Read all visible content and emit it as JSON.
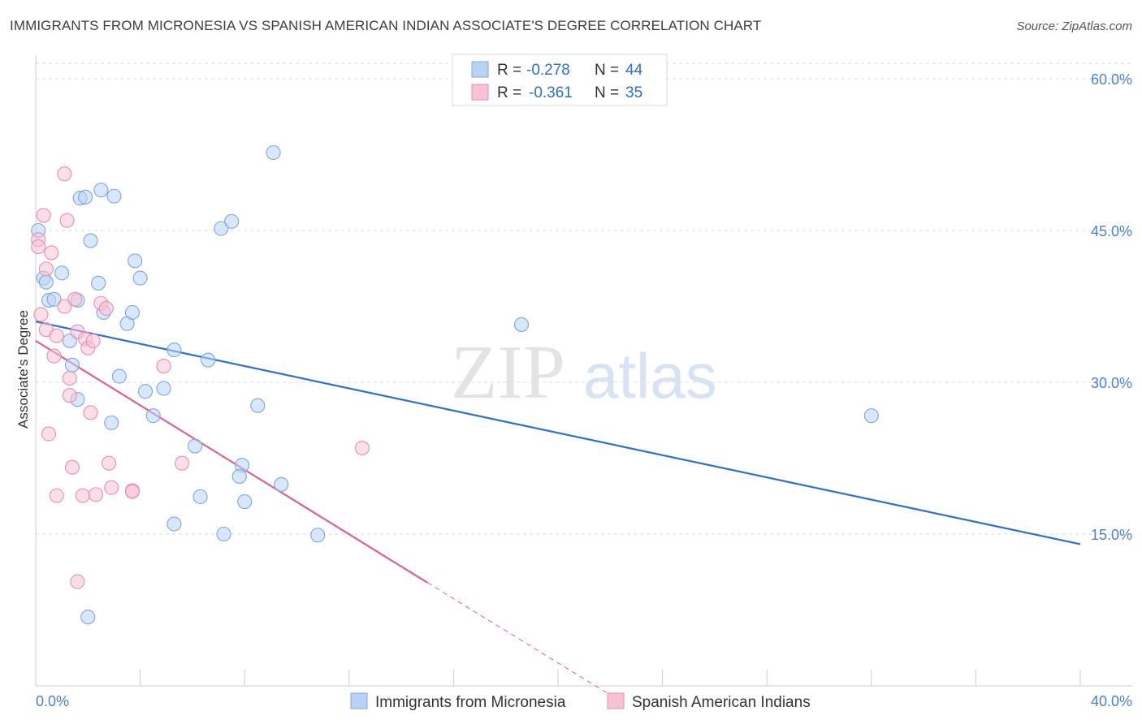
{
  "title": "IMMIGRANTS FROM MICRONESIA VS SPANISH AMERICAN INDIAN ASSOCIATE'S DEGREE CORRELATION CHART",
  "source": "Source: ZipAtlas.com",
  "watermark": {
    "zip": "ZIP",
    "atlas": "atlas"
  },
  "colors": {
    "blue_fill": "#b9d3f5",
    "blue_stroke": "#7ba7e0",
    "blue_line": "#2d6fd1",
    "pink_fill": "#f7c3d3",
    "pink_stroke": "#e88fac",
    "pink_line": "#e06090",
    "tick_text": "#4a7fd0",
    "grid": "#dcdcdc"
  },
  "legend": {
    "rows": [
      {
        "r_label": "R = ",
        "r_value": "-0.278",
        "n_label": "N = ",
        "n_value": "44",
        "series": "blue"
      },
      {
        "r_label": "R = ",
        "r_value": "-0.361",
        "n_label": "N = ",
        "n_value": "35",
        "series": "pink"
      }
    ]
  },
  "chart_data": {
    "type": "scatter",
    "title": "IMMIGRANTS FROM MICRONESIA VS SPANISH AMERICAN INDIAN ASSOCIATE'S DEGREE CORRELATION CHART",
    "xlabel": "",
    "ylabel": "Associate's Degree",
    "xlim": [
      0,
      40
    ],
    "ylim": [
      0,
      60
    ],
    "x_tick_labels": [
      {
        "value": 0,
        "label": "0.0%"
      },
      {
        "value": 40,
        "label": "40.0%"
      }
    ],
    "y_tick_labels": [
      {
        "value": 15,
        "label": "15.0%"
      },
      {
        "value": 30,
        "label": "30.0%"
      },
      {
        "value": 45,
        "label": "45.0%"
      },
      {
        "value": 60,
        "label": "60.0%"
      }
    ],
    "series": [
      {
        "name": "Immigrants from Micronesia",
        "color": "blue",
        "points": [
          [
            0.1,
            45.0
          ],
          [
            0.3,
            40.3
          ],
          [
            0.5,
            38.1
          ],
          [
            0.7,
            38.2
          ],
          [
            1.0,
            40.8
          ],
          [
            1.3,
            34.1
          ],
          [
            1.4,
            31.7
          ],
          [
            1.6,
            28.3
          ],
          [
            1.7,
            48.2
          ],
          [
            1.9,
            48.3
          ],
          [
            2.1,
            44.0
          ],
          [
            2.5,
            49.0
          ],
          [
            2.4,
            39.8
          ],
          [
            2.6,
            36.9
          ],
          [
            2.9,
            26.0
          ],
          [
            3.0,
            48.4
          ],
          [
            3.2,
            30.6
          ],
          [
            3.5,
            35.8
          ],
          [
            3.7,
            36.9
          ],
          [
            3.8,
            42.0
          ],
          [
            4.0,
            40.3
          ],
          [
            4.2,
            29.1
          ],
          [
            4.5,
            26.7
          ],
          [
            4.9,
            29.4
          ],
          [
            5.3,
            33.2
          ],
          [
            5.3,
            16.0
          ],
          [
            6.1,
            23.7
          ],
          [
            6.3,
            18.7
          ],
          [
            6.6,
            32.2
          ],
          [
            7.1,
            45.2
          ],
          [
            7.5,
            45.9
          ],
          [
            7.2,
            15.0
          ],
          [
            7.9,
            21.8
          ],
          [
            7.8,
            20.7
          ],
          [
            8.0,
            18.2
          ],
          [
            8.5,
            27.7
          ],
          [
            9.1,
            52.7
          ],
          [
            9.4,
            19.9
          ],
          [
            10.8,
            14.9
          ],
          [
            18.6,
            35.7
          ],
          [
            32.0,
            26.7
          ],
          [
            2.0,
            6.8
          ],
          [
            1.6,
            38.1
          ],
          [
            0.4,
            39.9
          ]
        ]
      },
      {
        "name": "Spanish American Indians",
        "color": "pink",
        "points": [
          [
            0.1,
            44.1
          ],
          [
            0.1,
            43.4
          ],
          [
            0.2,
            36.7
          ],
          [
            0.3,
            46.5
          ],
          [
            0.4,
            35.2
          ],
          [
            0.4,
            41.2
          ],
          [
            0.5,
            24.9
          ],
          [
            0.6,
            42.8
          ],
          [
            0.7,
            32.6
          ],
          [
            0.8,
            34.6
          ],
          [
            0.8,
            18.8
          ],
          [
            1.1,
            37.5
          ],
          [
            1.2,
            46.0
          ],
          [
            1.3,
            30.4
          ],
          [
            1.3,
            28.7
          ],
          [
            1.1,
            50.6
          ],
          [
            1.4,
            21.6
          ],
          [
            1.5,
            38.2
          ],
          [
            1.6,
            35.0
          ],
          [
            1.6,
            10.3
          ],
          [
            1.9,
            34.3
          ],
          [
            1.8,
            18.8
          ],
          [
            2.0,
            33.4
          ],
          [
            2.1,
            27.0
          ],
          [
            2.2,
            34.1
          ],
          [
            2.3,
            18.9
          ],
          [
            2.5,
            37.8
          ],
          [
            2.7,
            37.3
          ],
          [
            2.8,
            22.0
          ],
          [
            2.9,
            19.6
          ],
          [
            3.7,
            19.3
          ],
          [
            3.7,
            19.2
          ],
          [
            4.9,
            31.6
          ],
          [
            5.6,
            22.0
          ],
          [
            12.5,
            23.5
          ]
        ]
      }
    ],
    "trend_lines": [
      {
        "series": "Immigrants from Micronesia",
        "x": [
          0,
          40
        ],
        "y": [
          36.0,
          14.0
        ],
        "style": "solid"
      },
      {
        "series": "Spanish American Indians",
        "x": [
          0,
          15
        ],
        "y": [
          34.1,
          10.2
        ],
        "style": "solid"
      },
      {
        "series": "Spanish American Indians",
        "x": [
          15,
          22
        ],
        "y": [
          10.2,
          -0.9
        ],
        "style": "dashed"
      }
    ],
    "bottom_legend": [
      "Immigrants from Micronesia",
      "Spanish American Indians"
    ]
  }
}
